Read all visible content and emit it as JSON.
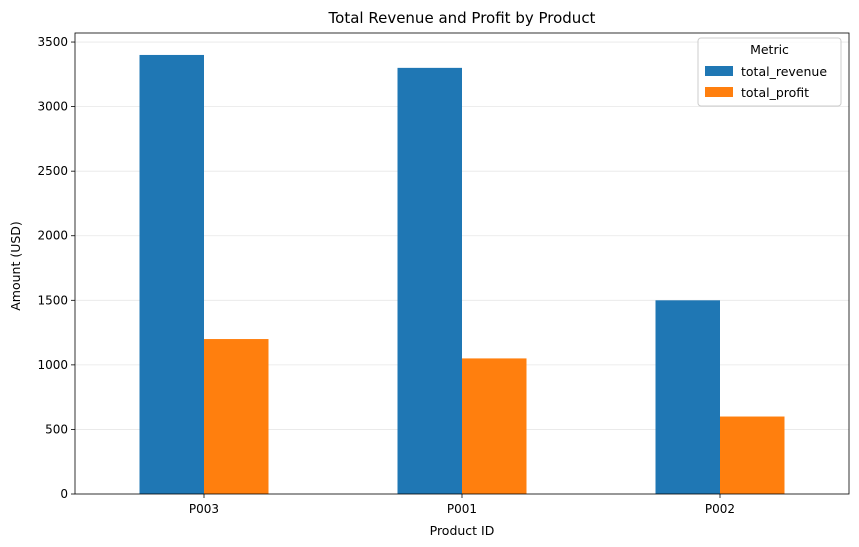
{
  "chart_data": {
    "type": "bar",
    "title": "Total Revenue and Profit by Product",
    "xlabel": "Product ID",
    "ylabel": "Amount (USD)",
    "categories": [
      "P003",
      "P001",
      "P002"
    ],
    "series": [
      {
        "name": "total_revenue",
        "values": [
          3400,
          3300,
          1500
        ],
        "color": "#1f77b4"
      },
      {
        "name": "total_profit",
        "values": [
          1200,
          1050,
          600
        ],
        "color": "#ff7f0e"
      }
    ],
    "ylim": [
      0,
      3570
    ],
    "yticks": [
      0,
      500,
      1000,
      1500,
      2000,
      2500,
      3000,
      3500
    ],
    "grid": "y",
    "legend": {
      "title": "Metric",
      "placement": "top-right"
    }
  }
}
